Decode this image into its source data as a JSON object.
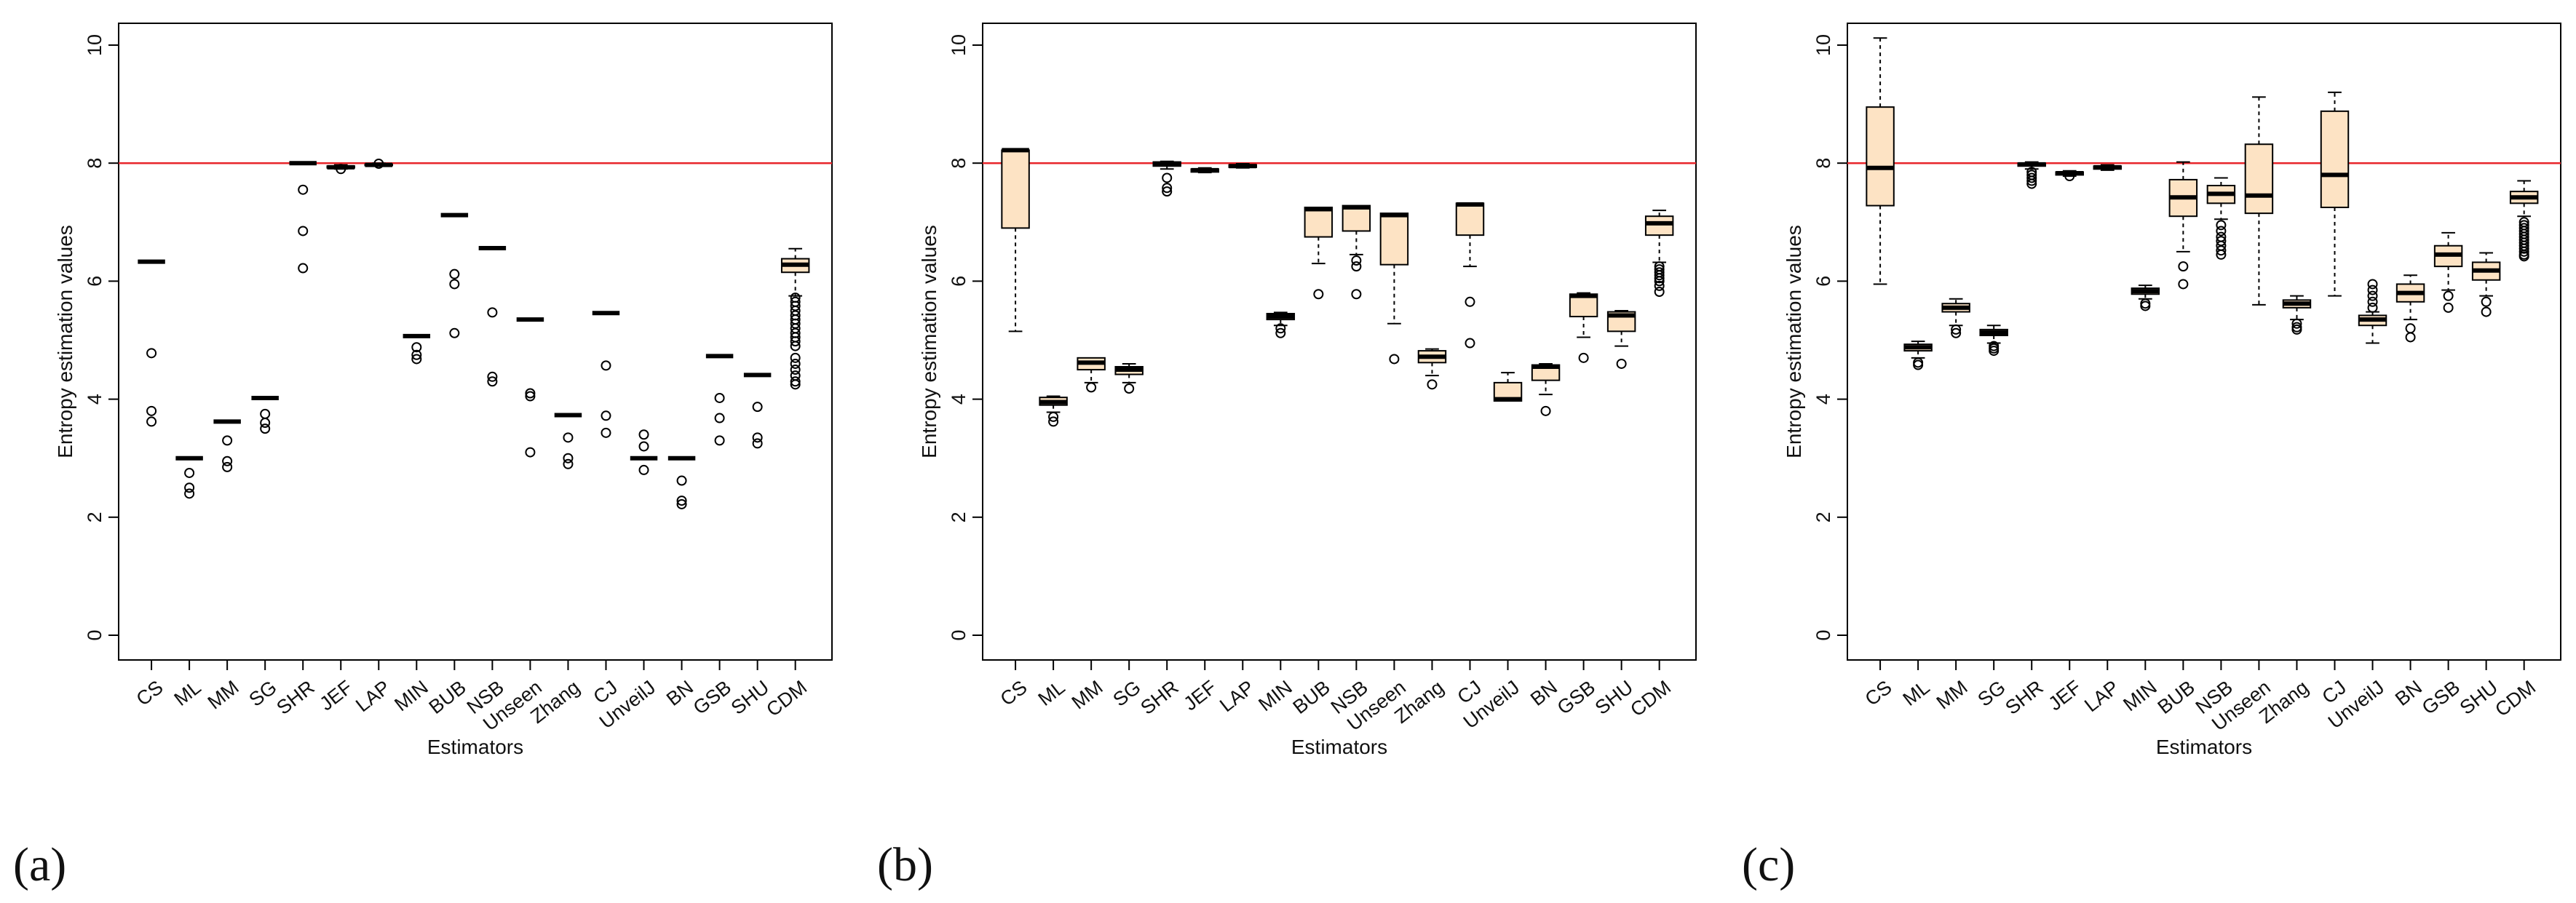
{
  "chart_data": [
    {
      "type": "boxplot",
      "panel_label": "(a)",
      "xlabel": "Estimators",
      "ylabel": "Entropy estimation values",
      "ylim": [
        0,
        10
      ],
      "yticks": [
        0,
        2,
        4,
        6,
        8,
        10
      ],
      "reference_line": {
        "y": 8,
        "color": "#e8262b"
      },
      "box_fill": "#fde3c4",
      "categories": [
        "CS",
        "ML",
        "MM",
        "SG",
        "SHR",
        "JEF",
        "LAP",
        "MIN",
        "BUB",
        "NSB",
        "Unseen",
        "Zhang",
        "CJ",
        "UnveilJ",
        "BN",
        "GSB",
        "SHU",
        "CDM"
      ],
      "boxes": [
        {
          "q1": 6.33,
          "median": 6.33,
          "q3": 6.33,
          "whisker_low": 6.33,
          "whisker_high": 6.33,
          "outliers": [
            4.78,
            3.8,
            3.62
          ]
        },
        {
          "q1": 3.0,
          "median": 3.0,
          "q3": 3.0,
          "whisker_low": 3.0,
          "whisker_high": 3.0,
          "outliers": [
            2.75,
            2.5,
            2.4
          ]
        },
        {
          "q1": 3.62,
          "median": 3.62,
          "q3": 3.62,
          "whisker_low": 3.62,
          "whisker_high": 3.62,
          "outliers": [
            3.3,
            2.95,
            2.85
          ]
        },
        {
          "q1": 4.02,
          "median": 4.02,
          "q3": 4.02,
          "whisker_low": 4.02,
          "whisker_high": 4.02,
          "outliers": [
            3.75,
            3.6,
            3.5
          ]
        },
        {
          "q1": 8.0,
          "median": 8.0,
          "q3": 8.0,
          "whisker_low": 8.0,
          "whisker_high": 8.0,
          "outliers": [
            7.55,
            6.85,
            6.22
          ]
        },
        {
          "q1": 7.92,
          "median": 7.93,
          "q3": 7.95,
          "whisker_low": 7.9,
          "whisker_high": 7.97,
          "outliers": [
            7.9
          ]
        },
        {
          "q1": 7.96,
          "median": 7.97,
          "q3": 7.98,
          "whisker_low": 7.95,
          "whisker_high": 8.0,
          "outliers": [
            7.99
          ]
        },
        {
          "q1": 5.07,
          "median": 5.07,
          "q3": 5.07,
          "whisker_low": 5.07,
          "whisker_high": 5.07,
          "outliers": [
            4.88,
            4.75,
            4.68
          ]
        },
        {
          "q1": 7.12,
          "median": 7.12,
          "q3": 7.12,
          "whisker_low": 7.12,
          "whisker_high": 7.12,
          "outliers": [
            6.12,
            5.95,
            5.12
          ]
        },
        {
          "q1": 6.56,
          "median": 6.56,
          "q3": 6.56,
          "whisker_low": 6.56,
          "whisker_high": 6.56,
          "outliers": [
            5.47,
            4.38,
            4.3
          ]
        },
        {
          "q1": 5.35,
          "median": 5.35,
          "q3": 5.35,
          "whisker_low": 5.35,
          "whisker_high": 5.35,
          "outliers": [
            4.1,
            4.05,
            3.1
          ]
        },
        {
          "q1": 3.73,
          "median": 3.73,
          "q3": 3.73,
          "whisker_low": 3.73,
          "whisker_high": 3.73,
          "outliers": [
            3.35,
            3.0,
            2.9
          ]
        },
        {
          "q1": 5.46,
          "median": 5.46,
          "q3": 5.46,
          "whisker_low": 5.46,
          "whisker_high": 5.46,
          "outliers": [
            4.57,
            3.72,
            3.43
          ]
        },
        {
          "q1": 3.0,
          "median": 3.0,
          "q3": 3.0,
          "whisker_low": 3.0,
          "whisker_high": 3.0,
          "outliers": [
            3.4,
            3.2,
            2.8
          ]
        },
        {
          "q1": 3.0,
          "median": 3.0,
          "q3": 3.0,
          "whisker_low": 3.0,
          "whisker_high": 3.0,
          "outliers": [
            2.62,
            2.28,
            2.22
          ]
        },
        {
          "q1": 4.73,
          "median": 4.73,
          "q3": 4.73,
          "whisker_low": 4.73,
          "whisker_high": 4.73,
          "outliers": [
            4.02,
            3.68,
            3.3
          ]
        },
        {
          "q1": 4.41,
          "median": 4.41,
          "q3": 4.41,
          "whisker_low": 4.41,
          "whisker_high": 4.41,
          "outliers": [
            3.87,
            3.35,
            3.25
          ]
        },
        {
          "q1": 6.15,
          "median": 6.28,
          "q3": 6.38,
          "whisker_low": 5.75,
          "whisker_high": 6.55,
          "outliers": [
            5.72,
            5.65,
            5.58,
            5.5,
            5.42,
            5.35,
            5.28,
            5.2,
            5.12,
            5.05,
            4.98,
            4.9,
            4.7,
            4.6,
            4.5,
            4.4,
            4.3,
            4.25
          ]
        }
      ]
    },
    {
      "type": "boxplot",
      "panel_label": "(b)",
      "xlabel": "Estimators",
      "ylabel": "Entropy estimation values",
      "ylim": [
        0,
        10
      ],
      "yticks": [
        0,
        2,
        4,
        6,
        8,
        10
      ],
      "reference_line": {
        "y": 8,
        "color": "#e8262b"
      },
      "box_fill": "#fde3c4",
      "categories": [
        "CS",
        "ML",
        "MM",
        "SG",
        "SHR",
        "JEF",
        "LAP",
        "MIN",
        "BUB",
        "NSB",
        "Unseen",
        "Zhang",
        "CJ",
        "UnveilJ",
        "BN",
        "GSB",
        "SHU",
        "CDM"
      ],
      "boxes": [
        {
          "q1": 6.9,
          "median": 8.22,
          "q3": 8.22,
          "whisker_low": 5.15,
          "whisker_high": 8.22,
          "outliers": []
        },
        {
          "q1": 3.9,
          "median": 3.95,
          "q3": 4.03,
          "whisker_low": 3.78,
          "whisker_high": 4.05,
          "outliers": [
            3.7,
            3.62
          ]
        },
        {
          "q1": 4.5,
          "median": 4.62,
          "q3": 4.7,
          "whisker_low": 4.28,
          "whisker_high": 4.7,
          "outliers": [
            4.2
          ]
        },
        {
          "q1": 4.42,
          "median": 4.5,
          "q3": 4.55,
          "whisker_low": 4.28,
          "whisker_high": 4.6,
          "outliers": [
            4.18
          ]
        },
        {
          "q1": 7.95,
          "median": 7.98,
          "q3": 8.02,
          "whisker_low": 7.9,
          "whisker_high": 8.03,
          "outliers": [
            7.75,
            7.58,
            7.52
          ]
        },
        {
          "q1": 7.85,
          "median": 7.88,
          "q3": 7.9,
          "whisker_low": 7.84,
          "whisker_high": 7.92,
          "outliers": []
        },
        {
          "q1": 7.93,
          "median": 7.95,
          "q3": 7.97,
          "whisker_low": 7.92,
          "whisker_high": 7.99,
          "outliers": []
        },
        {
          "q1": 5.35,
          "median": 5.4,
          "q3": 5.45,
          "whisker_low": 5.25,
          "whisker_high": 5.47,
          "outliers": [
            5.2,
            5.12
          ]
        },
        {
          "q1": 6.75,
          "median": 7.22,
          "q3": 7.25,
          "whisker_low": 6.3,
          "whisker_high": 7.25,
          "outliers": [
            5.78
          ]
        },
        {
          "q1": 6.85,
          "median": 7.25,
          "q3": 7.28,
          "whisker_low": 6.45,
          "whisker_high": 7.28,
          "outliers": [
            6.35,
            6.25,
            5.78
          ]
        },
        {
          "q1": 6.28,
          "median": 7.12,
          "q3": 7.15,
          "whisker_low": 5.28,
          "whisker_high": 7.15,
          "outliers": [
            4.68
          ]
        },
        {
          "q1": 4.62,
          "median": 4.72,
          "q3": 4.82,
          "whisker_low": 4.4,
          "whisker_high": 4.85,
          "outliers": [
            4.25
          ]
        },
        {
          "q1": 6.78,
          "median": 7.3,
          "q3": 7.32,
          "whisker_low": 6.25,
          "whisker_high": 7.32,
          "outliers": [
            5.65,
            4.95
          ]
        },
        {
          "q1": 3.97,
          "median": 4.0,
          "q3": 4.28,
          "whisker_low": 3.97,
          "whisker_high": 4.45,
          "outliers": []
        },
        {
          "q1": 4.32,
          "median": 4.55,
          "q3": 4.58,
          "whisker_low": 4.08,
          "whisker_high": 4.6,
          "outliers": [
            3.8
          ]
        },
        {
          "q1": 5.4,
          "median": 5.75,
          "q3": 5.78,
          "whisker_low": 5.05,
          "whisker_high": 5.8,
          "outliers": [
            4.7
          ]
        },
        {
          "q1": 5.15,
          "median": 5.42,
          "q3": 5.48,
          "whisker_low": 4.9,
          "whisker_high": 5.5,
          "outliers": [
            4.6
          ]
        },
        {
          "q1": 6.78,
          "median": 6.98,
          "q3": 7.1,
          "whisker_low": 6.32,
          "whisker_high": 7.2,
          "outliers": [
            6.25,
            6.2,
            6.15,
            6.1,
            6.05,
            6.0,
            5.92,
            5.82
          ]
        }
      ]
    },
    {
      "type": "boxplot",
      "panel_label": "(c)",
      "xlabel": "Estimators",
      "ylabel": "Entropy estimation values",
      "ylim": [
        0,
        10
      ],
      "yticks": [
        0,
        2,
        4,
        6,
        8,
        10
      ],
      "reference_line": {
        "y": 8,
        "color": "#e8262b"
      },
      "box_fill": "#fde3c4",
      "categories": [
        "CS",
        "ML",
        "MM",
        "SG",
        "SHR",
        "JEF",
        "LAP",
        "MIN",
        "BUB",
        "NSB",
        "Unseen",
        "Zhang",
        "CJ",
        "UnveilJ",
        "BN",
        "GSB",
        "SHU",
        "CDM"
      ],
      "boxes": [
        {
          "q1": 7.28,
          "median": 7.92,
          "q3": 8.95,
          "whisker_low": 5.95,
          "whisker_high": 10.12,
          "outliers": []
        },
        {
          "q1": 4.82,
          "median": 4.88,
          "q3": 4.93,
          "whisker_low": 4.7,
          "whisker_high": 4.98,
          "outliers": [
            4.62,
            4.58
          ]
        },
        {
          "q1": 5.48,
          "median": 5.55,
          "q3": 5.62,
          "whisker_low": 5.25,
          "whisker_high": 5.7,
          "outliers": [
            5.18,
            5.12
          ]
        },
        {
          "q1": 5.08,
          "median": 5.13,
          "q3": 5.18,
          "whisker_low": 4.95,
          "whisker_high": 5.25,
          "outliers": [
            4.9,
            4.86,
            4.82
          ]
        },
        {
          "q1": 7.95,
          "median": 7.98,
          "q3": 8.0,
          "whisker_low": 7.9,
          "whisker_high": 8.02,
          "outliers": [
            7.85,
            7.8,
            7.75,
            7.7,
            7.65
          ]
        },
        {
          "q1": 7.8,
          "median": 7.83,
          "q3": 7.85,
          "whisker_low": 7.78,
          "whisker_high": 7.87,
          "outliers": [
            7.78
          ]
        },
        {
          "q1": 7.9,
          "median": 7.93,
          "q3": 7.95,
          "whisker_low": 7.88,
          "whisker_high": 7.97,
          "outliers": []
        },
        {
          "q1": 5.78,
          "median": 5.83,
          "q3": 5.88,
          "whisker_low": 5.7,
          "whisker_high": 5.93,
          "outliers": [
            5.62,
            5.58
          ]
        },
        {
          "q1": 7.1,
          "median": 7.42,
          "q3": 7.72,
          "whisker_low": 6.5,
          "whisker_high": 8.02,
          "outliers": [
            6.25,
            5.95
          ]
        },
        {
          "q1": 7.32,
          "median": 7.48,
          "q3": 7.62,
          "whisker_low": 7.05,
          "whisker_high": 7.75,
          "outliers": [
            6.95,
            6.85,
            6.75,
            6.68,
            6.6,
            6.52,
            6.45
          ]
        },
        {
          "q1": 7.15,
          "median": 7.45,
          "q3": 8.32,
          "whisker_low": 5.6,
          "whisker_high": 9.12,
          "outliers": []
        },
        {
          "q1": 5.55,
          "median": 5.62,
          "q3": 5.68,
          "whisker_low": 5.35,
          "whisker_high": 5.75,
          "outliers": [
            5.28,
            5.22,
            5.18
          ]
        },
        {
          "q1": 7.25,
          "median": 7.8,
          "q3": 8.88,
          "whisker_low": 5.75,
          "whisker_high": 9.2,
          "outliers": []
        },
        {
          "q1": 5.25,
          "median": 5.35,
          "q3": 5.42,
          "whisker_low": 4.95,
          "whisker_high": 5.48,
          "outliers": [
            5.95,
            5.85,
            5.75,
            5.65,
            5.55
          ]
        },
        {
          "q1": 5.65,
          "median": 5.8,
          "q3": 5.95,
          "whisker_low": 5.35,
          "whisker_high": 6.1,
          "outliers": [
            5.2,
            5.05
          ]
        },
        {
          "q1": 6.25,
          "median": 6.45,
          "q3": 6.6,
          "whisker_low": 5.85,
          "whisker_high": 6.82,
          "outliers": [
            5.75,
            5.55
          ]
        },
        {
          "q1": 6.02,
          "median": 6.18,
          "q3": 6.32,
          "whisker_low": 5.75,
          "whisker_high": 6.48,
          "outliers": [
            5.65,
            5.48
          ]
        },
        {
          "q1": 7.32,
          "median": 7.42,
          "q3": 7.52,
          "whisker_low": 7.1,
          "whisker_high": 7.7,
          "outliers": [
            7.0,
            6.95,
            6.9,
            6.85,
            6.8,
            6.75,
            6.7,
            6.65,
            6.6,
            6.55,
            6.5,
            6.45,
            6.42
          ]
        }
      ]
    }
  ]
}
